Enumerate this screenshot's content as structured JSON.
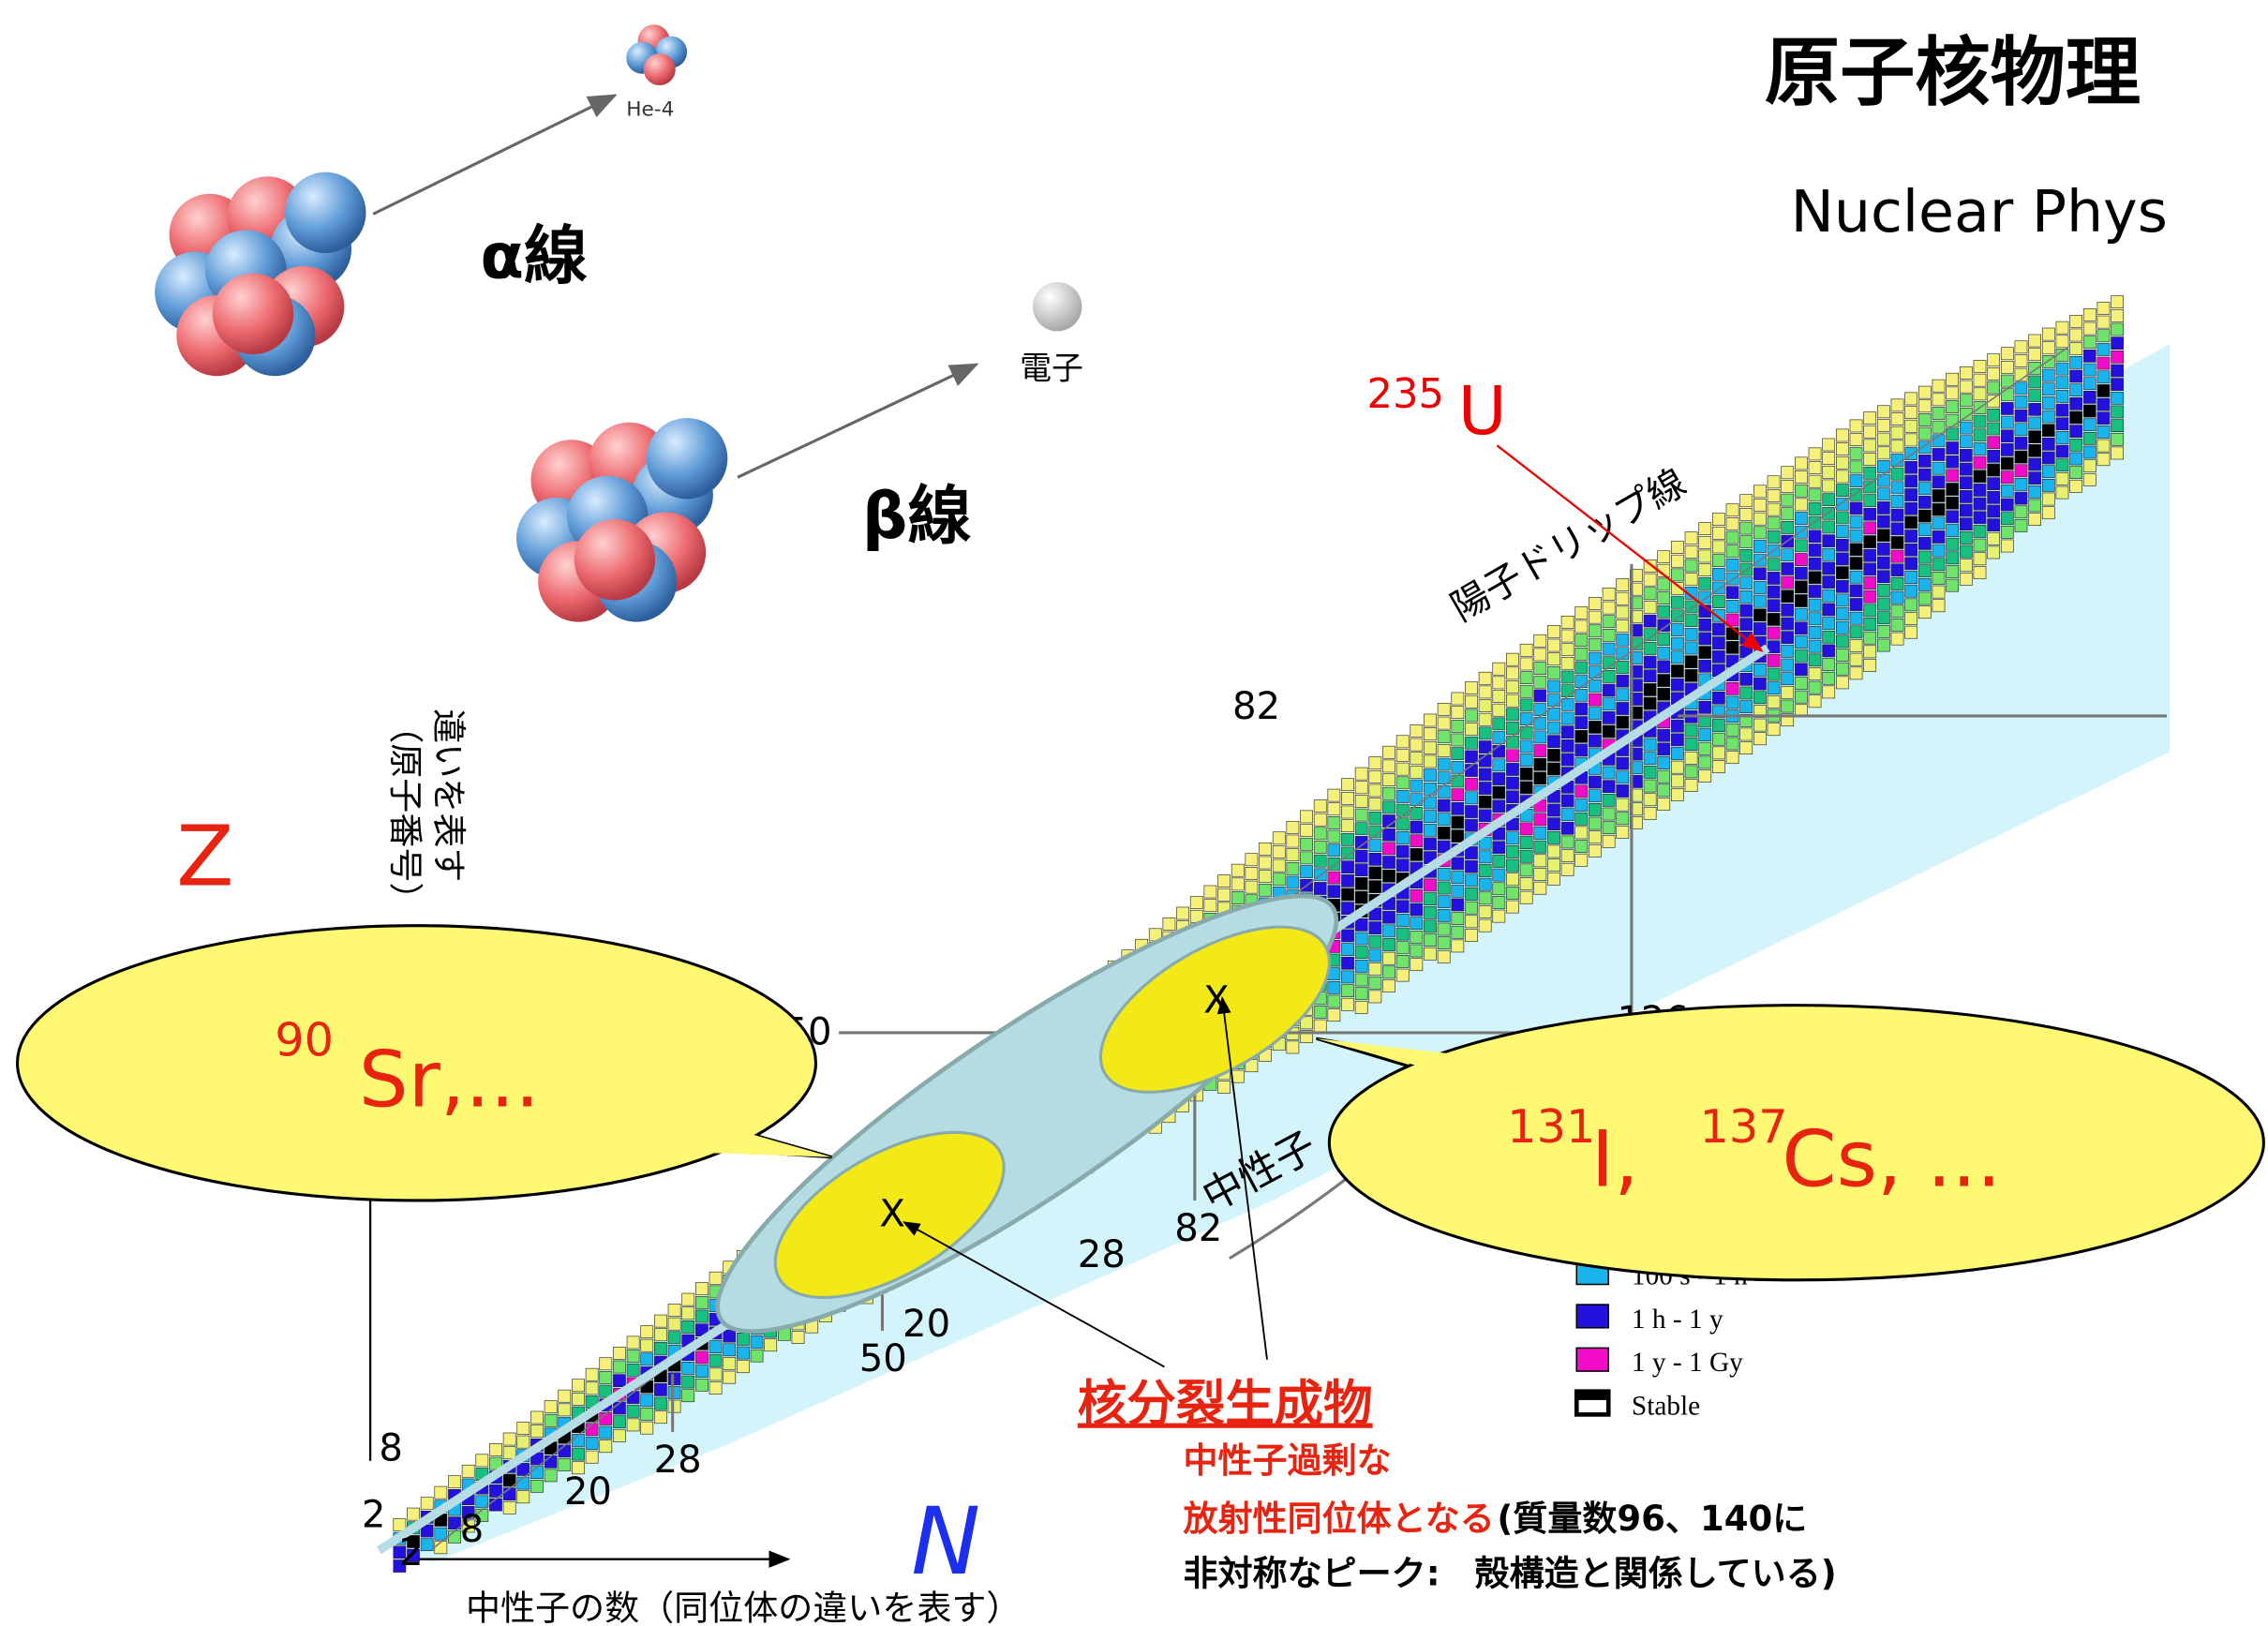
{
  "title": "原子核物理",
  "subtitle": "Nuclear Phys",
  "decay": {
    "he4": "He-4",
    "alpha": "α線",
    "electron": "電子",
    "beta": "β線"
  },
  "chart": {
    "u_mass": "235",
    "u_symbol": "U",
    "proton_drip_line": "陽子ドリップ線",
    "z_label": "Z",
    "z_axis_note": [
      "（原子番号）",
      "違いを表す"
    ],
    "n_label": "N",
    "n_axis_note": "中性子の数（同位体の違いを表す）",
    "neutron_label": "中性子",
    "magic_numbers": [
      "82",
      "50",
      "126",
      "82",
      "28",
      "20",
      "50",
      "8",
      "28",
      "2",
      "20",
      "8",
      "2"
    ],
    "legend": [
      "100 s - 1 h",
      "1 h - 1 y",
      "1 y - 1 Gy",
      "Stable"
    ],
    "marker": "X"
  },
  "callouts": {
    "sr_mass": "90",
    "sr_text": "Sr,...",
    "i_mass": "131",
    "i_text": "I, ",
    "cs_mass": "137",
    "cs_text": "Cs, ..."
  },
  "fission": {
    "heading": "核分裂生成物",
    "line1": "中性子過剰な",
    "line2_red": "放射性同位体となる",
    "line2_black": "(質量数96、140に",
    "line3": "非対称なピーク:　殻構造と関係している)"
  }
}
